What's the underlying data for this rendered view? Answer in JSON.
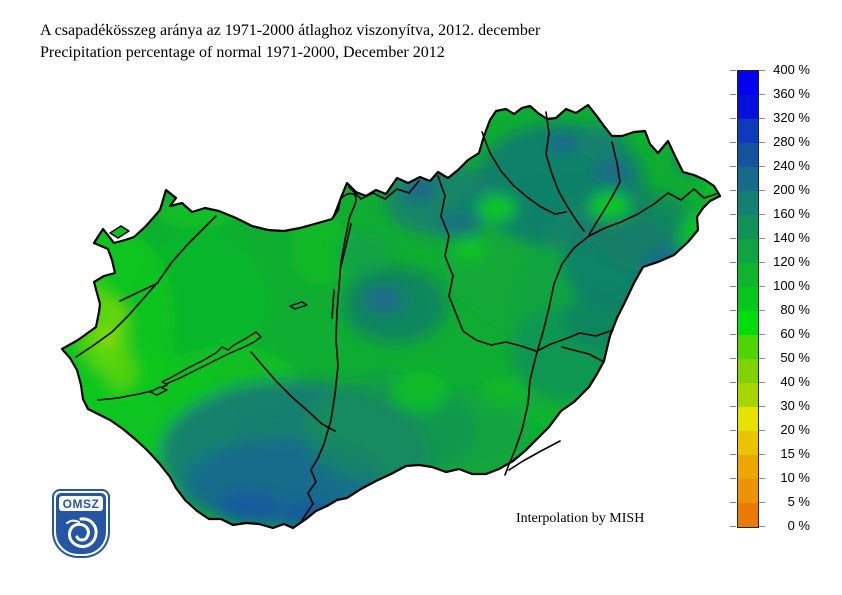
{
  "title": {
    "line1_hu": "A csapadékösszeg aránya az 1971-2000 átlaghoz viszonyítva, 2012. december",
    "line2_en": "Precipitation percentage of normal 1971-2000, December 2012"
  },
  "attribution": "Interpolation by MISH",
  "logo": {
    "text": "OMSZ",
    "shield_color": "#2456A4"
  },
  "legend": {
    "unit": "%",
    "tick_labels": [
      "400 %",
      "360 %",
      "320 %",
      "280 %",
      "240 %",
      "200 %",
      "160 %",
      "140 %",
      "120 %",
      "100 %",
      "80 %",
      "60 %",
      "50 %",
      "40 %",
      "30 %",
      "20 %",
      "15 %",
      "10 %",
      "5 %",
      "0 %"
    ],
    "tick_values": [
      400,
      360,
      320,
      280,
      240,
      200,
      160,
      140,
      120,
      100,
      80,
      60,
      50,
      40,
      30,
      20,
      15,
      10,
      5,
      0
    ],
    "segment_colors_top_to_bottom": [
      "#0202EE",
      "#0212DC",
      "#0D3BBB",
      "#14549E",
      "#166B8C",
      "#147F72",
      "#129158",
      "#10A342",
      "#0EB52D",
      "#07C71C",
      "#00DC0C",
      "#4FD505",
      "#7FD300",
      "#A6D600",
      "#E6E300",
      "#EAC400",
      "#ECA800",
      "#ED9200",
      "#E97C00"
    ]
  },
  "map_summary": {
    "type": "filled-contour precipitation anomaly map",
    "region": "Hungary",
    "dominant_range_percent": "100-160",
    "west_border_range_percent": "40-100",
    "south_transdanubia_range_percent": "160-280",
    "northeast_and_center_range_percent": "120-240",
    "base_color": "#0FAD32",
    "border_color": "#000000"
  }
}
